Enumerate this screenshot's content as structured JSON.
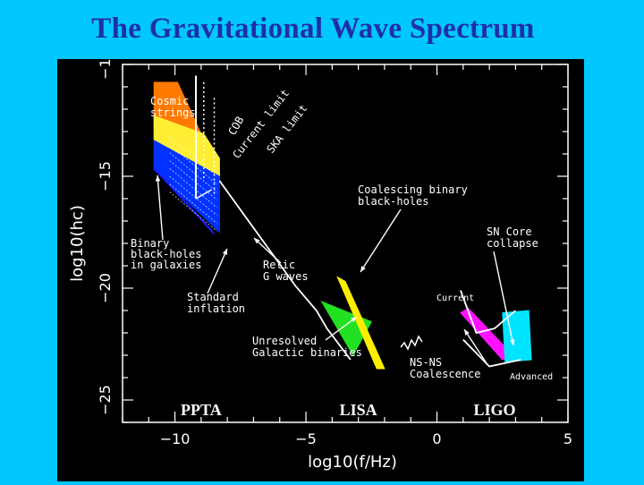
{
  "title": "The Gravitational Wave Spectrum",
  "colors": {
    "background": "#00c8ff",
    "title": "#1f2fa8",
    "panel": "#000000",
    "cosmic_strings": "#ff7a00",
    "inflation_band": "#ffee33",
    "relic_band": "#0033ff",
    "binary_bh_galaxies": "#1a1aff",
    "galactic_binaries": "#22e022",
    "coalescing_bh": "#ffee00",
    "ns_ns": "#ff11ff",
    "sn_core": "#00e5ff"
  },
  "chart_data": {
    "type": "area",
    "xlabel": "log10(f/Hz)",
    "ylabel": "log10(hc)",
    "xlim": [
      -12,
      5
    ],
    "ylim": [
      -26,
      -10
    ],
    "xticks": [
      -10,
      -5,
      0,
      5
    ],
    "yticks": [
      -10,
      -15,
      -20,
      -25
    ],
    "xtick_labels": [
      "−10",
      "−5",
      "0",
      "5"
    ],
    "ytick_labels": [
      "−10",
      "−15",
      "−20",
      "−25"
    ],
    "detectors": [
      {
        "name": "PPTA",
        "x": -9
      },
      {
        "name": "LISA",
        "x": -3
      },
      {
        "name": "LIGO",
        "x": 2.2
      }
    ],
    "sources": [
      {
        "name": "Cosmic strings",
        "label": "Cosmic\nstrings",
        "polygon": [
          [
            -10.8,
            -10.8
          ],
          [
            -9.9,
            -10.8
          ],
          [
            -8.3,
            -14.9
          ],
          [
            -10.8,
            -12.8
          ]
        ]
      },
      {
        "name": "Standard inflation",
        "label": "Standard\ninflation",
        "polygon": [
          [
            -10.8,
            -12.3
          ],
          [
            -8.9,
            -13.1
          ],
          [
            -8.3,
            -14.2
          ],
          [
            -8.3,
            -15.2
          ],
          [
            -10.8,
            -13.5
          ]
        ]
      },
      {
        "name": "Relic G waves",
        "label": "Relic\nG waves",
        "polygon": [
          [
            -10.8,
            -13.4
          ],
          [
            -8.3,
            -15.0
          ],
          [
            -8.3,
            -17.5
          ],
          [
            -10.8,
            -14.7
          ]
        ]
      },
      {
        "name": "Binary black-holes in galaxies",
        "label": "Binary\nblack-holes\nin galaxies",
        "polygon": [
          [
            -10.8,
            -14.6
          ],
          [
            -10.7,
            -14.8
          ],
          [
            -8.5,
            -17.6
          ],
          [
            -8.6,
            -17.4
          ]
        ]
      },
      {
        "name": "Unresolved Galactic binaries",
        "label": "Unresolved\nGalactic binaries",
        "polygon": [
          [
            -4.4,
            -20.6
          ],
          [
            -2.5,
            -21.5
          ],
          [
            -3.2,
            -23.0
          ]
        ]
      },
      {
        "name": "Coalescing binary black-holes",
        "label": "Coalescing binary\nblack-holes",
        "polygon": [
          [
            -3.8,
            -19.5
          ],
          [
            -3.5,
            -19.7
          ],
          [
            -2.0,
            -23.6
          ],
          [
            -2.3,
            -23.6
          ]
        ]
      },
      {
        "name": "NS-NS Coalescence",
        "label": "NS-NS\nCoalescence",
        "polygon": [
          [
            0.9,
            -21.1
          ],
          [
            1.2,
            -20.9
          ],
          [
            2.9,
            -23.0
          ],
          [
            2.5,
            -23.2
          ]
        ]
      },
      {
        "name": "SN Core collapse",
        "label": "SN Core\ncollapse",
        "polygon": [
          [
            2.5,
            -21.1
          ],
          [
            3.5,
            -21.0
          ],
          [
            3.6,
            -23.2
          ],
          [
            2.6,
            -23.3
          ]
        ]
      }
    ],
    "curves": [
      {
        "name": "Current",
        "label": "Current",
        "points": [
          [
            0.9,
            -20.1
          ],
          [
            1.5,
            -22.0
          ],
          [
            2.2,
            -21.8
          ],
          [
            3.0,
            -21.0
          ]
        ]
      },
      {
        "name": "Advanced",
        "label": "Advanced",
        "points": [
          [
            1.0,
            -22.3
          ],
          [
            2.0,
            -23.5
          ],
          [
            3.2,
            -23.2
          ]
        ]
      },
      {
        "name": "LISA sensitivity",
        "label": "",
        "points": [
          [
            -8.3,
            -15.2
          ],
          [
            -5.4,
            -19.9
          ],
          [
            -4.6,
            -21.0
          ],
          [
            -4.2,
            -21.8
          ],
          [
            -3.3,
            -23.2
          ]
        ]
      }
    ],
    "limits": [
      {
        "name": "COBE",
        "label": "COB",
        "x": -9.2,
        "ytop": -10.5,
        "ybot": -16.0
      },
      {
        "name": "Current limit",
        "label": "Current limit",
        "x": -8.9,
        "ytop": -10.8,
        "ybot": -15.2
      },
      {
        "name": "SKA limit",
        "label": "SKA limit",
        "x": -8.5,
        "ytop": -11.5,
        "ybot": -15.8
      }
    ]
  },
  "annotations": {
    "cosmic_strings": [
      "Cosmic",
      "strings"
    ],
    "cob": "COB",
    "current_limit": "Current limit",
    "ska_limit": "SKA limit",
    "coalescing": [
      "Coalescing binary",
      "black-holes"
    ],
    "sn_core": [
      "SN Core",
      "collapse"
    ],
    "binary_bh": [
      "Binary",
      "black-holes",
      "in galaxies"
    ],
    "relic": [
      "Relic",
      "G waves"
    ],
    "standard_inflation": [
      "Standard",
      "inflation"
    ],
    "current": "Current",
    "unresolved": [
      "Unresolved",
      "Galactic binaries"
    ],
    "ns_ns": [
      "NS-NS",
      "Coalescence"
    ],
    "advanced": "Advanced"
  }
}
